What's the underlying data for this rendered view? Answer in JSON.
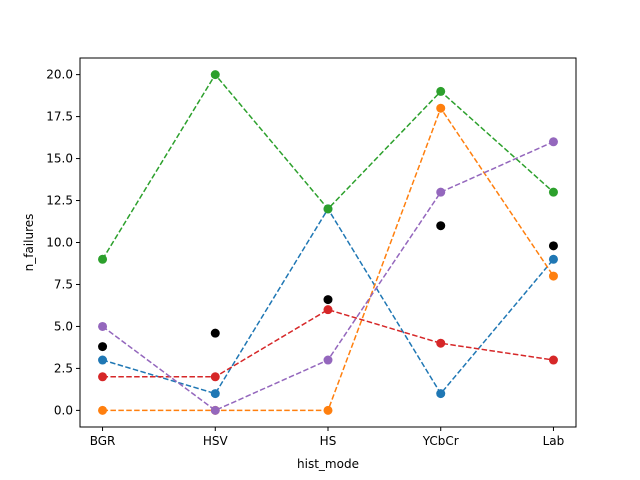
{
  "chart_data": {
    "type": "line",
    "xlabel": "hist_mode",
    "ylabel": "n_failures",
    "categories": [
      "BGR",
      "HSV",
      "HS",
      "YCbCr",
      "Lab"
    ],
    "ylim": [
      -0.99,
      20.99
    ],
    "yticks": [
      0.0,
      2.5,
      5.0,
      7.5,
      10.0,
      12.5,
      15.0,
      17.5,
      20.0
    ],
    "ytick_labels": [
      "0.0",
      "2.5",
      "5.0",
      "7.5",
      "10.0",
      "12.5",
      "15.0",
      "17.5",
      "20.0"
    ],
    "grid": false,
    "series": [
      {
        "color": "#1f77b4",
        "style": "dashed",
        "marker": "circle",
        "values": [
          3,
          1,
          12,
          1,
          9
        ]
      },
      {
        "color": "#ff7f0e",
        "style": "dashed",
        "marker": "circle",
        "values": [
          0,
          0,
          0,
          18,
          8
        ]
      },
      {
        "color": "#2ca02c",
        "style": "dashed",
        "marker": "circle",
        "values": [
          9,
          20,
          12,
          19,
          13
        ]
      },
      {
        "color": "#d62728",
        "style": "dashed",
        "marker": "circle",
        "values": [
          2,
          2,
          6,
          4,
          3
        ]
      },
      {
        "color": "#9467bd",
        "style": "dashed",
        "marker": "circle",
        "values": [
          5,
          0,
          3,
          13,
          16
        ]
      },
      {
        "color": "#000000",
        "style": "none",
        "marker": "circle",
        "values": [
          3.8,
          4.6,
          6.6,
          11.0,
          9.8
        ]
      }
    ]
  }
}
